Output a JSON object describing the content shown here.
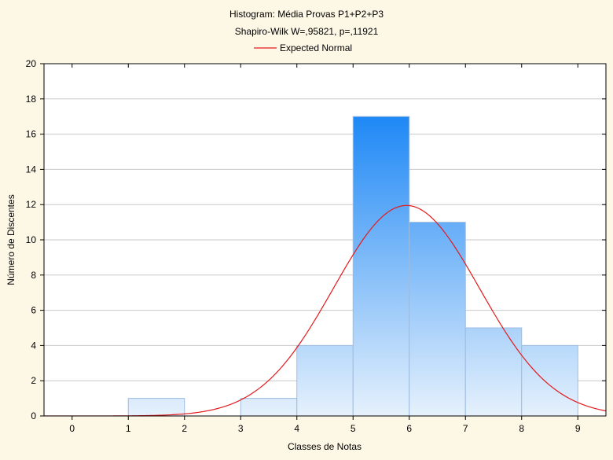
{
  "chart_data": {
    "type": "bar",
    "title": "Histogram: Média Provas P1+P2+P3",
    "subtitle": "Shapiro-Wilk W=,95821, p=,11921",
    "xlabel": "Classes de Notas",
    "ylabel": "Número de Discentes",
    "x_ticks": [
      "0",
      "1",
      "2",
      "3",
      "4",
      "5",
      "6",
      "7",
      "8",
      "9"
    ],
    "y_ticks": [
      "0",
      "2",
      "4",
      "6",
      "8",
      "10",
      "12",
      "14",
      "16",
      "18",
      "20"
    ],
    "xlim": [
      -0.5,
      9.5
    ],
    "ylim": [
      0,
      20
    ],
    "grid": true,
    "bins": [
      {
        "from": 0,
        "to": 1,
        "value": 0
      },
      {
        "from": 1,
        "to": 2,
        "value": 1
      },
      {
        "from": 2,
        "to": 3,
        "value": 0
      },
      {
        "from": 3,
        "to": 4,
        "value": 1
      },
      {
        "from": 4,
        "to": 5,
        "value": 4
      },
      {
        "from": 5,
        "to": 6,
        "value": 17
      },
      {
        "from": 6,
        "to": 7,
        "value": 11
      },
      {
        "from": 7,
        "to": 8,
        "value": 5
      },
      {
        "from": 8,
        "to": 9,
        "value": 4
      }
    ],
    "expected_normal": {
      "name": "Expected Normal",
      "mean": 5.95,
      "sd": 1.3,
      "peak": 11.95,
      "color": "#e41a1c"
    },
    "legend_position": "top-center",
    "bar_color_top": "#1e88f5",
    "bar_color_bottom": "#e6f1fc"
  }
}
